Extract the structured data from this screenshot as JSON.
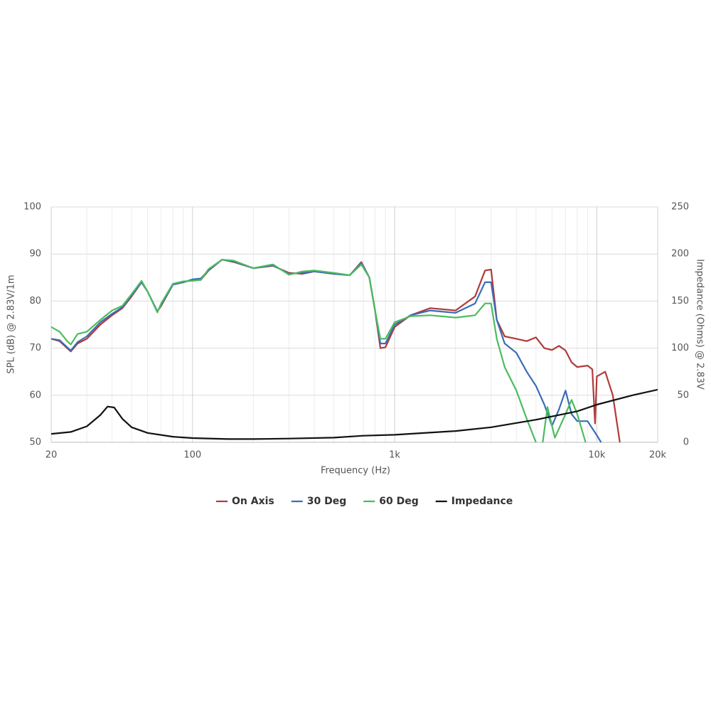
{
  "chart_data": {
    "type": "line",
    "xlabel": "Frequency (Hz)",
    "ylabel": "SPL (dB) @ 2.83V/1m",
    "y2label": "Impedance (Ohms) @ 2.83V",
    "xscale": "log",
    "grid": true,
    "legend": "bottom",
    "xlim": [
      20,
      20000
    ],
    "xticks": [
      20,
      100,
      {
        "value": 1000,
        "label": "1k"
      },
      {
        "value": 10000,
        "label": "10k"
      },
      {
        "value": 20000,
        "label": "20k"
      }
    ],
    "xminorticks": [
      30,
      40,
      50,
      60,
      70,
      80,
      90,
      200,
      300,
      400,
      500,
      600,
      700,
      800,
      900,
      2000,
      3000,
      4000,
      5000,
      6000,
      7000,
      8000,
      9000
    ],
    "ylim": [
      50,
      100
    ],
    "yticks": [
      50,
      60,
      70,
      80,
      90,
      100
    ],
    "y2lim": [
      0,
      250
    ],
    "y2ticks": [
      0,
      50,
      100,
      150,
      200,
      250
    ],
    "series": [
      {
        "name": "On Axis",
        "color": "#b03a3a",
        "x": [
          20,
          22,
          24,
          25,
          27,
          30,
          35,
          40,
          45,
          50,
          56,
          60,
          67,
          70,
          80,
          90,
          100,
          110,
          120,
          140,
          160,
          200,
          250,
          300,
          350,
          400,
          500,
          600,
          684,
          750,
          800,
          850,
          900,
          1000,
          1200,
          1500,
          2000,
          2500,
          2800,
          3000,
          3200,
          3500,
          4000,
          4500,
          5000,
          5500,
          6000,
          6500,
          7000,
          7500,
          8000,
          9000,
          9500,
          9800,
          10000,
          11000,
          12000,
          13000
        ],
        "values": [
          72,
          71.5,
          70,
          69.3,
          71,
          72,
          75,
          77,
          78.5,
          81,
          84,
          82,
          77.8,
          79,
          83.5,
          84,
          84.5,
          84.5,
          86.5,
          88.8,
          88.3,
          87,
          87.5,
          86,
          85.8,
          86.3,
          85.8,
          85.5,
          88.3,
          85,
          78,
          70,
          70.2,
          74.5,
          77,
          78.5,
          78,
          81,
          86.5,
          86.7,
          76,
          72.5,
          72,
          71.5,
          72.3,
          70,
          69.6,
          70.5,
          69.5,
          67,
          66,
          66.3,
          65.5,
          54,
          64,
          65,
          60,
          50
        ]
      },
      {
        "name": "30 Deg",
        "color": "#3a6db5",
        "x": [
          20,
          22,
          24,
          25,
          27,
          30,
          35,
          40,
          45,
          50,
          56,
          60,
          67,
          70,
          80,
          90,
          100,
          110,
          120,
          140,
          160,
          200,
          250,
          300,
          350,
          400,
          500,
          600,
          684,
          750,
          800,
          850,
          900,
          1000,
          1200,
          1500,
          2000,
          2500,
          2800,
          3000,
          3200,
          3500,
          4000,
          4500,
          5000,
          5500,
          6000,
          6500,
          7000,
          7500,
          8000,
          9000,
          10000,
          10500
        ],
        "values": [
          72,
          71.7,
          70.2,
          69.5,
          71.3,
          72.5,
          75.5,
          77.3,
          78.7,
          81.2,
          84,
          82,
          77.8,
          79.2,
          83.5,
          84,
          84.6,
          84.8,
          86.6,
          88.8,
          88.4,
          87,
          87.6,
          85.8,
          86,
          86.3,
          85.8,
          85.5,
          88.1,
          85,
          78,
          71,
          71,
          75,
          77,
          78,
          77.5,
          79.5,
          84,
          84,
          76,
          71,
          69,
          65,
          62,
          58,
          53.5,
          57,
          61,
          56,
          54.5,
          54.5,
          51.5,
          50
        ]
      },
      {
        "name": "60 Deg",
        "color": "#4cbb5e",
        "x": [
          20,
          22,
          24,
          25,
          27,
          30,
          35,
          40,
          45,
          50,
          56,
          60,
          67,
          70,
          80,
          90,
          100,
          110,
          120,
          140,
          160,
          200,
          250,
          300,
          350,
          400,
          500,
          600,
          684,
          750,
          800,
          850,
          900,
          1000,
          1200,
          1500,
          2000,
          2500,
          2800,
          3000,
          3200,
          3500,
          4000,
          4500,
          5000,
          5200,
          5400,
          5700,
          6200,
          7000,
          7500,
          8000,
          8800
        ],
        "values": [
          74.5,
          73.5,
          71.5,
          70.8,
          73,
          73.5,
          76,
          78,
          79,
          81.5,
          84.3,
          82,
          77.6,
          79.5,
          83.7,
          84.2,
          84.3,
          84.5,
          86.8,
          88.8,
          88.6,
          87,
          87.8,
          85.6,
          86.3,
          86.5,
          86,
          85.5,
          87.8,
          85,
          78,
          72,
          72,
          75.5,
          76.8,
          77,
          76.5,
          77,
          79.5,
          79.5,
          72,
          66,
          61,
          55,
          50,
          null,
          50,
          57.5,
          51,
          56,
          59,
          56,
          50
        ]
      },
      {
        "name": "Impedance",
        "color": "#111111",
        "axis": "y2",
        "x": [
          20,
          25,
          30,
          35,
          38,
          41,
          45,
          50,
          60,
          80,
          100,
          150,
          200,
          300,
          500,
          700,
          1000,
          2000,
          3000,
          5000,
          8000,
          10000,
          15000,
          20000
        ],
        "values": [
          9,
          11,
          17,
          29,
          38,
          37,
          25,
          16,
          10,
          6,
          4.5,
          3.5,
          3.5,
          4,
          5,
          7,
          8,
          12,
          16,
          24,
          33,
          40,
          50,
          56
        ]
      }
    ]
  }
}
